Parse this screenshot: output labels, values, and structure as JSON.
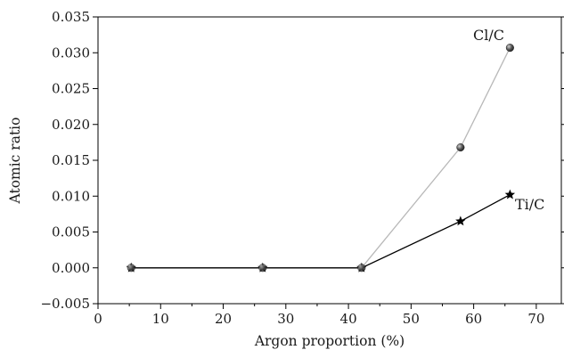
{
  "chart_data": {
    "type": "line",
    "xlabel": "Argon proportion (%)",
    "ylabel": "Atomic ratio",
    "xlim": [
      0,
      74
    ],
    "ylim": [
      -0.005,
      0.035
    ],
    "x_ticks": [
      0,
      10,
      20,
      30,
      40,
      50,
      60,
      70
    ],
    "y_ticks": [
      -0.005,
      0.0,
      0.005,
      0.01,
      0.015,
      0.02,
      0.025,
      0.03,
      0.035
    ],
    "x_tick_labels": [
      "0",
      "10",
      "20",
      "30",
      "40",
      "50",
      "60",
      "70"
    ],
    "y_tick_labels": [
      "−0.005",
      "0.000",
      "0.005",
      "0.010",
      "0.015",
      "0.020",
      "0.025",
      "0.030",
      "0.035"
    ],
    "grid": false,
    "series": [
      {
        "name": "Cl/C",
        "marker": "sphere",
        "color": "#b8b8b8",
        "marker_color": "#444444",
        "x": [
          5.3,
          26.3,
          42.1,
          57.9,
          65.8
        ],
        "y": [
          0.0,
          0.0,
          0.0,
          0.0168,
          0.0307
        ]
      },
      {
        "name": "Ti/C",
        "marker": "star",
        "color": "#000000",
        "marker_color": "#000000",
        "x": [
          5.3,
          26.3,
          42.1,
          57.9,
          65.8
        ],
        "y": [
          0.0,
          0.0,
          0.0,
          0.0065,
          0.0102
        ]
      }
    ]
  }
}
